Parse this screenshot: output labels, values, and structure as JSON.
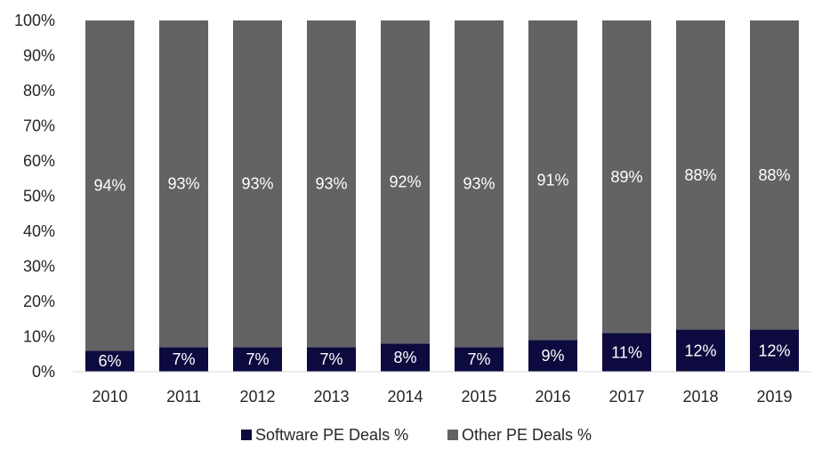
{
  "chart_data": {
    "type": "bar",
    "stacked": true,
    "categories": [
      "2010",
      "2011",
      "2012",
      "2013",
      "2014",
      "2015",
      "2016",
      "2017",
      "2018",
      "2019"
    ],
    "series": [
      {
        "name": "Software PE Deals %",
        "color": "#0c0a3e",
        "values": [
          6,
          7,
          7,
          7,
          8,
          7,
          9,
          11,
          12,
          12
        ],
        "labels": [
          "6%",
          "7%",
          "7%",
          "7%",
          "8%",
          "7%",
          "9%",
          "11%",
          "12%",
          "12%"
        ]
      },
      {
        "name": "Other PE Deals %",
        "color": "#636366",
        "values": [
          94,
          93,
          93,
          93,
          92,
          93,
          91,
          89,
          88,
          88
        ],
        "labels": [
          "94%",
          "93%",
          "93%",
          "93%",
          "92%",
          "93%",
          "91%",
          "89%",
          "88%",
          "88%"
        ]
      }
    ],
    "ylim": [
      0,
      100
    ],
    "yticks": [
      "0%",
      "10%",
      "20%",
      "30%",
      "40%",
      "50%",
      "60%",
      "70%",
      "80%",
      "90%",
      "100%"
    ],
    "grid": false,
    "legend_position": "bottom"
  }
}
